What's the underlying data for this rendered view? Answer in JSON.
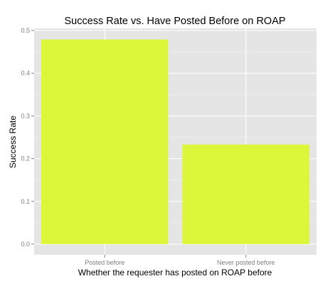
{
  "chart_data": {
    "type": "bar",
    "title": "Success Rate vs. Have Posted Before on ROAP",
    "xlabel": "Whether the requester has posted on ROAP before",
    "ylabel": "Success Rate",
    "categories": [
      "Posted before",
      "Never posted before"
    ],
    "values": [
      0.479,
      0.233
    ],
    "ylim": [
      -0.025,
      0.505
    ],
    "yticks": [
      0.0,
      0.1,
      0.2,
      0.3,
      0.4,
      0.5
    ],
    "ytick_labels": [
      "0.0",
      "0.1",
      "0.2",
      "0.3",
      "0.4",
      "0.5"
    ],
    "grid": true,
    "legend": "none",
    "colors": {
      "bar": "#dcf73a",
      "panel_background": "#e5e5e5",
      "grid_major": "#ffffff",
      "grid_minor": "#f2f2f2",
      "tick_text": "#7f7f7f"
    }
  }
}
